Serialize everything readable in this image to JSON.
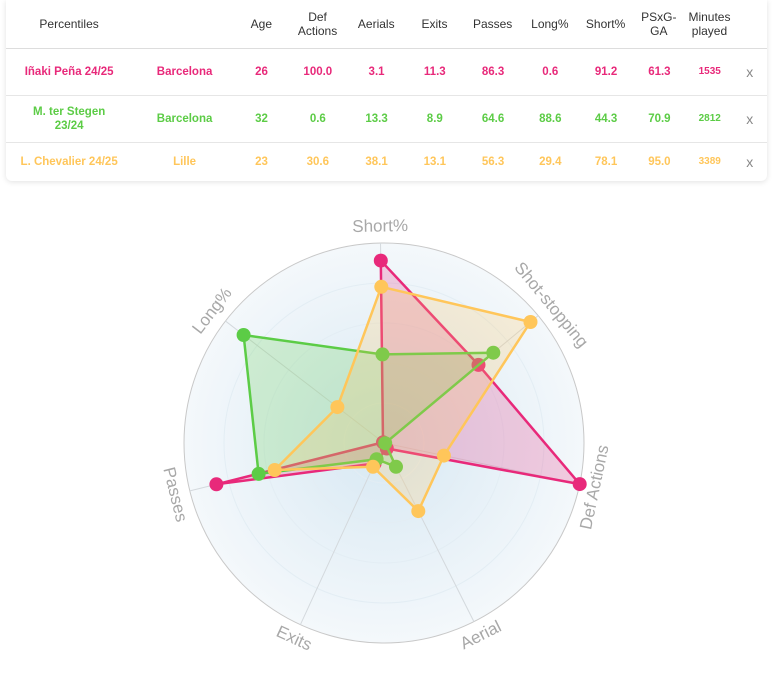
{
  "table": {
    "headers": {
      "name": "Percentiles",
      "team": "",
      "age": "Age",
      "def_actions_line1": "Def",
      "def_actions_line2": "Actions",
      "aerials": "Aerials",
      "exits": "Exits",
      "passes": "Passes",
      "long": "Long%",
      "short": "Short%",
      "psxg_line1": "PSxG-",
      "psxg_line2": "GA",
      "minutes_line1": "Minutes",
      "minutes_line2": "played"
    },
    "rows": [
      {
        "name_line1": "Iñaki Peña 24/25",
        "name_line2": "",
        "team": "Barcelona",
        "age": "26",
        "def_actions": "100.0",
        "aerials": "3.1",
        "exits": "11.3",
        "passes": "86.3",
        "long": "0.6",
        "short": "91.2",
        "psxg": "61.3",
        "minutes": "1535",
        "remove": "x",
        "color": "#e8297a"
      },
      {
        "name_line1": "M. ter Stegen",
        "name_line2": "23/24",
        "team": "Barcelona",
        "age": "32",
        "def_actions": "0.6",
        "aerials": "13.3",
        "exits": "8.9",
        "passes": "64.6",
        "long": "88.6",
        "short": "44.3",
        "psxg": "70.9",
        "minutes": "2812",
        "remove": "x",
        "color": "#5ccc46"
      },
      {
        "name_line1": "L. Chevalier 24/25",
        "name_line2": "",
        "team": "Lille",
        "age": "23",
        "def_actions": "30.6",
        "aerials": "38.1",
        "exits": "13.1",
        "passes": "56.3",
        "long": "29.4",
        "short": "78.1",
        "psxg": "95.0",
        "minutes": "3389",
        "remove": "x",
        "color": "#ffc65a"
      }
    ]
  },
  "radar": {
    "axes": [
      "Short%",
      "Shot-stopping",
      "Def Actions",
      "Aerial",
      "Exits",
      "Passes",
      "Long%"
    ],
    "series": [
      {
        "color": "#e8297a",
        "values": [
          91.2,
          61.3,
          100.0,
          3.1,
          11.3,
          86.3,
          0.6
        ]
      },
      {
        "color": "#5ccc46",
        "values": [
          44.3,
          70.9,
          0.6,
          13.3,
          8.9,
          64.6,
          88.6
        ]
      },
      {
        "color": "#ffc65a",
        "values": [
          78.1,
          95.0,
          30.6,
          38.1,
          13.1,
          56.3,
          29.4
        ]
      }
    ]
  }
}
